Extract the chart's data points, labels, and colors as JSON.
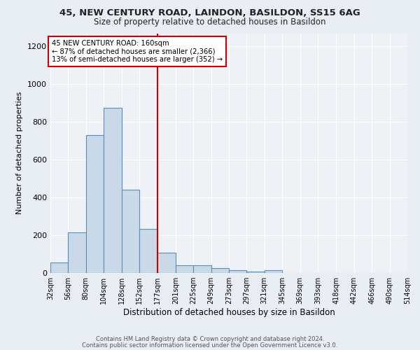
{
  "title1": "45, NEW CENTURY ROAD, LAINDON, BASILDON, SS15 6AG",
  "title2": "Size of property relative to detached houses in Basildon",
  "xlabel": "Distribution of detached houses by size in Basildon",
  "ylabel": "Number of detached properties",
  "footnote1": "Contains HM Land Registry data © Crown copyright and database right 2024.",
  "footnote2": "Contains public sector information licensed under the Open Government Licence v3.0.",
  "annotation_line1": "45 NEW CENTURY ROAD: 160sqm",
  "annotation_line2": "← 87% of detached houses are smaller (2,366)",
  "annotation_line3": "13% of semi-detached houses are larger (352) →",
  "bar_left_edges": [
    32,
    56,
    80,
    104,
    128,
    152,
    177,
    201,
    225,
    249,
    273,
    297,
    321,
    345,
    369,
    393,
    418,
    442,
    466,
    490
  ],
  "bar_widths": [
    24,
    24,
    24,
    24,
    24,
    25,
    24,
    24,
    24,
    24,
    24,
    24,
    24,
    24,
    24,
    25,
    24,
    24,
    24,
    24
  ],
  "bar_heights": [
    55,
    215,
    730,
    875,
    440,
    235,
    108,
    42,
    42,
    25,
    15,
    8,
    13,
    0,
    0,
    0,
    0,
    0,
    0,
    0
  ],
  "bar_facecolor": "#c9d9e8",
  "bar_edgecolor": "#5b8db8",
  "vline_color": "#cc0000",
  "vline_x": 177,
  "ylim": [
    0,
    1270
  ],
  "yticks": [
    0,
    200,
    400,
    600,
    800,
    1000,
    1200
  ],
  "background_color": "#e8eef4",
  "axes_background": "#eef2f7",
  "grid_color": "#ffffff",
  "annotation_box_color": "#cc0000",
  "tick_labels": [
    "32sqm",
    "56sqm",
    "80sqm",
    "104sqm",
    "128sqm",
    "152sqm",
    "177sqm",
    "201sqm",
    "225sqm",
    "249sqm",
    "273sqm",
    "297sqm",
    "321sqm",
    "345sqm",
    "369sqm",
    "393sqm",
    "418sqm",
    "442sqm",
    "466sqm",
    "490sqm",
    "514sqm"
  ],
  "tick_positions": [
    32,
    56,
    80,
    104,
    128,
    152,
    177,
    201,
    225,
    249,
    273,
    297,
    321,
    345,
    369,
    393,
    418,
    442,
    466,
    490,
    514
  ]
}
